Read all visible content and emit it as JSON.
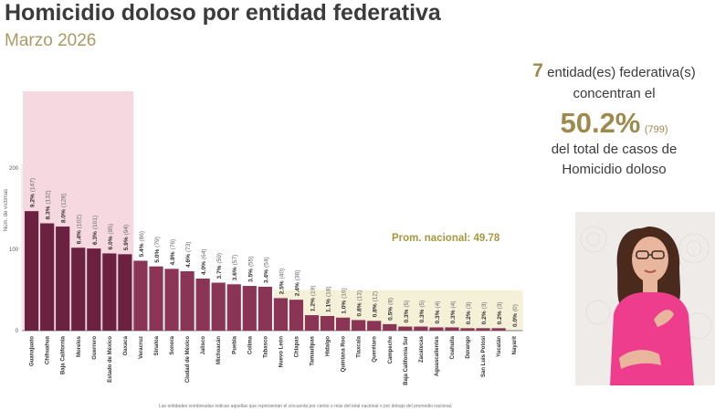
{
  "header": {
    "title": "Homicidio doloso por entidad federativa",
    "subtitle": "Marzo 2026"
  },
  "summary": {
    "count": "7",
    "line1_text": "entidad(es) federativa(s)",
    "line2": "concentran el",
    "percent": "50.2%",
    "cases": "(799)",
    "line3": "del total de casos de",
    "line4": "Homicidio doloso"
  },
  "footnote": "Las entidades sombreadas indican aquellas que representan el cincuenta por ciento o más del total nacional o por debajo del promedio nacional.",
  "colors": {
    "bar_dark": "#6b2140",
    "bar_mid": "#8a3456",
    "highlight_top": "#f6d9e0",
    "highlight_low": "#f5f0d8",
    "prom_text": "#a6983f",
    "summary_accent": "#9d8a4c"
  },
  "chart_data": {
    "type": "bar",
    "title": "Homicidio doloso por entidad federativa",
    "subtitle": "Marzo 2026",
    "ylabel": "Núm. de víctimas",
    "xlabel": "",
    "ylim": [
      0,
      200
    ],
    "yticks": [
      0,
      100,
      200
    ],
    "categories": [
      "Guanajuato",
      "Chihuahua",
      "Baja California",
      "Morelos",
      "Guerrero",
      "Estado de México",
      "Oaxaca",
      "Veracruz",
      "Sinaloa",
      "Sonora",
      "Ciudad de México",
      "Jalisco",
      "Michoacán",
      "Puebla",
      "Colima",
      "Tabasco",
      "Nuevo León",
      "Chiapas",
      "Tamaulipas",
      "Hidalgo",
      "Quintana Roo",
      "Tlaxcala",
      "Querétaro",
      "Campeche",
      "Baja California Sur",
      "Zacatecas",
      "Aguascalientes",
      "Coahuila",
      "Durango",
      "San Luis Potosí",
      "Yucatán",
      "Nayarit"
    ],
    "values": [
      147,
      132,
      128,
      102,
      101,
      95,
      94,
      86,
      79,
      76,
      73,
      64,
      59,
      57,
      55,
      54,
      40,
      38,
      19,
      18,
      16,
      13,
      12,
      8,
      5,
      5,
      4,
      4,
      3,
      3,
      3,
      0
    ],
    "labels": [
      "9.2% (147)",
      "8.3% (132)",
      "8.0% (128)",
      "6.4% (102)",
      "6.3% (101)",
      "6.0% (95)",
      "5.9% (94)",
      "5.4% (86)",
      "5.0% (79)",
      "4.8% (76)",
      "4.6% (73)",
      "4.0% (64)",
      "3.7% (59)",
      "3.6% (57)",
      "3.5% (55)",
      "3.4% (54)",
      "2.5% (40)",
      "2.4% (38)",
      "1.2% (19)",
      "1.1% (18)",
      "1.0% (16)",
      "0.8% (13)",
      "0.8% (12)",
      "0.5% (8)",
      "0.3% (5)",
      "0.3% (5)",
      "0.3% (4)",
      "0.3% (4)",
      "0.2% (3)",
      "0.2% (3)",
      "0.2% (3)",
      "0.0% (0)"
    ],
    "highlight_top_count": 7,
    "national_average": 49.78,
    "average_label": "Prom. nacional: 49.78"
  }
}
